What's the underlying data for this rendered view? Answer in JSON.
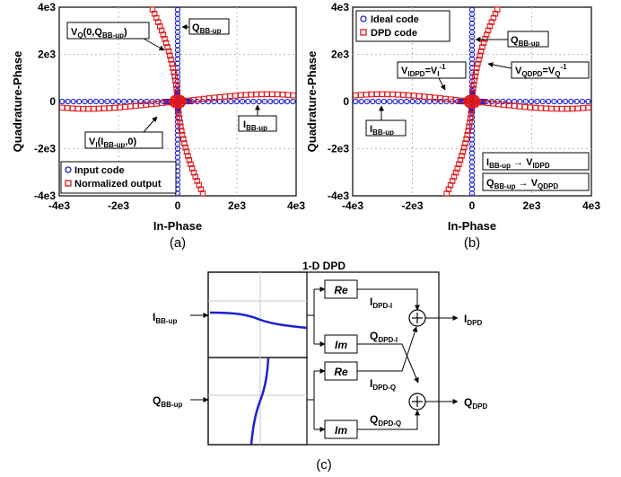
{
  "chart_data": [
    {
      "type": "scatter",
      "panel_label": "(a)",
      "xlabel": "In-Phase",
      "ylabel": "Quadrature-Phase",
      "xlim": [
        -4000,
        4000
      ],
      "ylim": [
        -4000,
        4000
      ],
      "x_ticks": [
        "-4e3",
        "-2e3",
        "0",
        "2e3",
        "4e3"
      ],
      "y_ticks": [
        "4e3",
        "2e3",
        "0",
        "-2e3",
        "-4e3"
      ],
      "grid": true,
      "legend_position": "bottom-left",
      "series": [
        {
          "name": "Input code",
          "marker": "circle",
          "color": "#1f1fd0"
        },
        {
          "name": "Normalized output",
          "marker": "square",
          "color": "#e01818"
        }
      ],
      "annotations": [
        {
          "id": "vq",
          "main": "V",
          "sub": "Q",
          "rest": "(0,Q",
          "sub2": "BB-up",
          "tail": ")"
        },
        {
          "id": "qbb",
          "main": "Q",
          "sub": "BB-up"
        },
        {
          "id": "ibb",
          "main": "I",
          "sub": "BB-up"
        },
        {
          "id": "vi",
          "main": "V",
          "sub": "I",
          "rest": "(I",
          "sub2": "BB-up",
          "tail": ",0)"
        }
      ]
    },
    {
      "type": "scatter",
      "panel_label": "(b)",
      "xlabel": "In-Phase",
      "ylabel": "Quadrature-Phase",
      "xlim": [
        -4000,
        4000
      ],
      "ylim": [
        -4000,
        4000
      ],
      "x_ticks": [
        "-4e3",
        "-2e3",
        "0",
        "2e3",
        "4e3"
      ],
      "y_ticks": [
        "4e3",
        "2e3",
        "0",
        "-2e3",
        "-4e3"
      ],
      "grid": true,
      "legend_position": "top-left",
      "series": [
        {
          "name": "Ideal code",
          "marker": "circle",
          "color": "#1f1fd0"
        },
        {
          "name": "DPD code",
          "marker": "square",
          "color": "#e01818"
        }
      ],
      "annotations": [
        {
          "id": "qbb",
          "main": "Q",
          "sub": "BB-up"
        },
        {
          "id": "vidpd",
          "main": "V",
          "sub": "IDPD",
          "rest": "=V",
          "sub2": "I",
          "sup": "-1"
        },
        {
          "id": "vqdpd",
          "main": "V",
          "sub": "QDPD",
          "rest": "=V",
          "sub2": "Q",
          "sup": "-1"
        },
        {
          "id": "ibb",
          "main": "I",
          "sub": "BB-up"
        },
        {
          "id": "map1",
          "a": "I",
          "asub": "BB-up",
          "b": "V",
          "bsub": "IDPD"
        },
        {
          "id": "map2",
          "a": "Q",
          "asub": "BB-up",
          "b": "V",
          "bsub": "QDPD"
        }
      ]
    }
  ],
  "diagram": {
    "panel_label": "(c)",
    "title": "1-D DPD",
    "input_i": {
      "main": "I",
      "sub": "BB-up"
    },
    "input_q": {
      "main": "Q",
      "sub": "BB-up"
    },
    "re_label": "Re",
    "im_label": "Im",
    "sig_idpd_i": {
      "main": "I",
      "sub": "DPD-I"
    },
    "sig_qdpd_i": {
      "main": "Q",
      "sub": "DPD-I"
    },
    "sig_idpd_q": {
      "main": "I",
      "sub": "DPD-Q"
    },
    "sig_qdpd_q": {
      "main": "Q",
      "sub": "DPD-Q"
    },
    "out_i": {
      "main": "I",
      "sub": "DPD"
    },
    "out_q": {
      "main": "Q",
      "sub": "DPD"
    }
  }
}
